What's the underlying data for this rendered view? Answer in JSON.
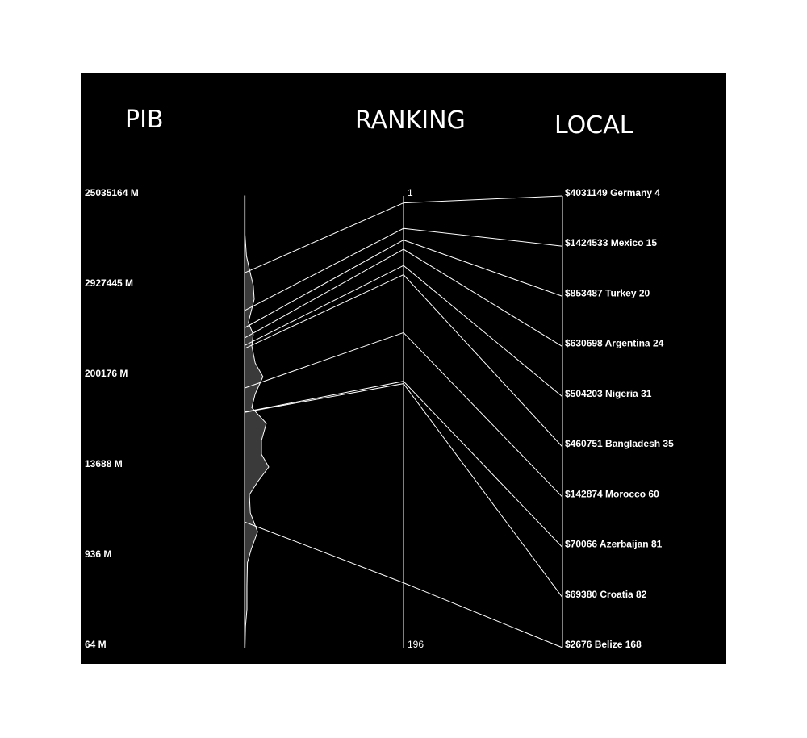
{
  "chart_data": {
    "type": "parallel-coordinates",
    "headers": {
      "left": "PIB",
      "middle": "RANKING",
      "right": "LOCAL"
    },
    "left_axis": {
      "ticks": [
        "25035164 M",
        "2927445 M",
        "200176 M",
        "13688 M",
        "936 M",
        "64 M"
      ],
      "tick_values": [
        25035164,
        2927445,
        200176,
        13688,
        936,
        64
      ],
      "scale": "log"
    },
    "middle_axis": {
      "top_label": "1",
      "bottom_label": "196",
      "min": 1,
      "max": 196
    },
    "distribution": [
      [
        25035164,
        0.1
      ],
      [
        10000000,
        0.1
      ],
      [
        6000000,
        0.4
      ],
      [
        4000000,
        1.2
      ],
      [
        3000000,
        1.8
      ],
      [
        2000000,
        2.0
      ],
      [
        1500000,
        1.5
      ],
      [
        1000000,
        0.8
      ],
      [
        700000,
        1.8
      ],
      [
        500000,
        1.5
      ],
      [
        300000,
        2.2
      ],
      [
        200000,
        3.8
      ],
      [
        120000,
        2.2
      ],
      [
        80000,
        1.5
      ],
      [
        50000,
        4.5
      ],
      [
        30000,
        3.5
      ],
      [
        20000,
        3.5
      ],
      [
        13688,
        5.0
      ],
      [
        9000,
        2.8
      ],
      [
        6000,
        1.0
      ],
      [
        3500,
        1.2
      ],
      [
        2000,
        2.7
      ],
      [
        1200,
        1.4
      ],
      [
        800,
        0.6
      ],
      [
        400,
        0.5
      ],
      [
        200,
        0.5
      ],
      [
        120,
        0.2
      ],
      [
        64,
        0.1
      ]
    ],
    "rows": [
      {
        "country": "Germany",
        "value": 4031149,
        "rank": 4,
        "label": "$4031149 Germany  4"
      },
      {
        "country": "Mexico",
        "value": 1424533,
        "rank": 15,
        "label": "$1424533 Mexico  15"
      },
      {
        "country": "Turkey",
        "value": 853487,
        "rank": 20,
        "label": "$853487 Turkey  20"
      },
      {
        "country": "Argentina",
        "value": 630698,
        "rank": 24,
        "label": "$630698 Argentina  24"
      },
      {
        "country": "Nigeria",
        "value": 504203,
        "rank": 31,
        "label": "$504203 Nigeria  31"
      },
      {
        "country": "Bangladesh",
        "value": 460751,
        "rank": 35,
        "label": "$460751 Bangladesh  35"
      },
      {
        "country": "Morocco",
        "value": 142874,
        "rank": 60,
        "label": "$142874 Morocco  60"
      },
      {
        "country": "Azerbaijan",
        "value": 70066,
        "rank": 81,
        "label": "$70066 Azerbaijan  81"
      },
      {
        "country": "Croatia",
        "value": 69380,
        "rank": 82,
        "label": "$69380 Croatia  82"
      },
      {
        "country": "Belize",
        "value": 2676,
        "rank": 168,
        "label": "$2676 Belize  168"
      }
    ]
  }
}
